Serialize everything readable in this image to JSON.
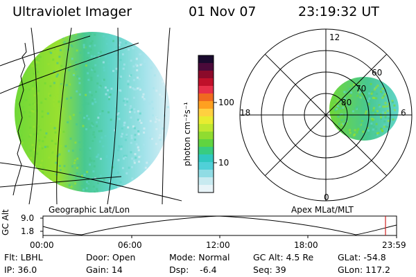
{
  "header": {
    "instrument": "Ultraviolet Imager",
    "date": "01 Nov 07",
    "time": "23:19:32 UT"
  },
  "colorbar": {
    "unit_label": "photon cm⁻²s⁻¹",
    "tick_labels": [
      "100",
      "10"
    ],
    "colors": [
      "#1a0a2e",
      "#4b0a3a",
      "#8b0a2a",
      "#c0102a",
      "#e8304a",
      "#f06a20",
      "#ffa020",
      "#ffd040",
      "#e8ec30",
      "#c0e830",
      "#90dc30",
      "#60d440",
      "#38cc80",
      "#30c8c0",
      "#50d0d8",
      "#90dce4",
      "#c8eaf0",
      "#e8f4f8"
    ]
  },
  "left_panel": {
    "caption": "Geographic Lat/Lon",
    "fill_colors": [
      "#70d838",
      "#98e030",
      "#48c890",
      "#60d4c8",
      "#a8e4ec",
      "#d8eef4"
    ]
  },
  "polar_panel": {
    "caption": "Apex MLat/MLT",
    "mlt_labels": {
      "top": "12",
      "left": "18",
      "right": "6",
      "bottom": "0"
    },
    "lat_labels": [
      "60",
      "70",
      "80"
    ]
  },
  "altitude_plot": {
    "ylabel": "GC Alt",
    "y_ticks": [
      "9.0",
      "1.8"
    ],
    "x_ticks": [
      "00:00",
      "06:00",
      "12:00",
      "18:00",
      "23:59"
    ],
    "marker_color": "#d02020"
  },
  "info": {
    "row1": {
      "flt": "Flt: LBHL",
      "door": "Door: Open",
      "mode": "Mode: Normal",
      "gc_alt": "GC Alt: 4.5 Re",
      "glat": "GLat: -54.8"
    },
    "row2": {
      "ip": "IP: 36.0",
      "gain": "Gain: 14",
      "dsp": "Dsp:    -6.4",
      "seq": "Seq: 39",
      "glon": "GLon: 117.2"
    }
  }
}
